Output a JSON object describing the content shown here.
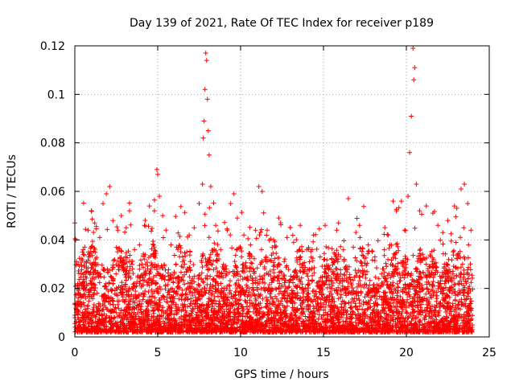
{
  "chart_data": {
    "type": "scatter",
    "title": "Day 139 of 2021, Rate Of TEC Index for receiver p189",
    "xlabel": "GPS time / hours",
    "ylabel": "ROTI / TECUs",
    "xlim": [
      0,
      25
    ],
    "ylim": [
      0,
      0.12
    ],
    "xticks": [
      0,
      5,
      10,
      15,
      20,
      25
    ],
    "xtick_labels": [
      "0",
      "5",
      "10",
      "15",
      "20",
      "25"
    ],
    "yticks": [
      0,
      0.02,
      0.04,
      0.06,
      0.08,
      0.1,
      0.12
    ],
    "ytick_labels": [
      "0",
      "0.02",
      "0.04",
      "0.06",
      "0.08",
      "0.1",
      "0.12"
    ],
    "grid": true,
    "marker": "+",
    "color": "#ff0000",
    "series": [
      {
        "points": [
          [
            0.0,
            0.047
          ],
          [
            0.05,
            0.04
          ],
          [
            0.2,
            0.03
          ],
          [
            0.3,
            0.022
          ],
          [
            0.5,
            0.036
          ],
          [
            0.8,
            0.044
          ],
          [
            1.0,
            0.052
          ],
          [
            1.2,
            0.047
          ],
          [
            1.5,
            0.041
          ],
          [
            1.7,
            0.055
          ],
          [
            1.9,
            0.059
          ],
          [
            2.1,
            0.062
          ],
          [
            2.3,
            0.048
          ],
          [
            2.6,
            0.044
          ],
          [
            2.8,
            0.05
          ],
          [
            3.1,
            0.045
          ],
          [
            3.3,
            0.052
          ],
          [
            3.6,
            0.036
          ],
          [
            3.9,
            0.038
          ],
          [
            4.2,
            0.046
          ],
          [
            4.5,
            0.054
          ],
          [
            4.8,
            0.052
          ],
          [
            4.95,
            0.069
          ],
          [
            5.0,
            0.067
          ],
          [
            5.1,
            0.058
          ],
          [
            5.3,
            0.05
          ],
          [
            5.5,
            0.044
          ],
          [
            5.8,
            0.038
          ],
          [
            6.1,
            0.03
          ],
          [
            6.5,
            0.033
          ],
          [
            6.9,
            0.042
          ],
          [
            7.2,
            0.045
          ],
          [
            7.5,
            0.055
          ],
          [
            7.7,
            0.063
          ],
          [
            7.75,
            0.082
          ],
          [
            7.8,
            0.089
          ],
          [
            7.85,
            0.102
          ],
          [
            7.9,
            0.117
          ],
          [
            7.95,
            0.114
          ],
          [
            8.0,
            0.098
          ],
          [
            8.05,
            0.085
          ],
          [
            8.1,
            0.075
          ],
          [
            8.2,
            0.062
          ],
          [
            8.5,
            0.046
          ],
          [
            8.8,
            0.036
          ],
          [
            9.2,
            0.044
          ],
          [
            9.4,
            0.055
          ],
          [
            9.6,
            0.059
          ],
          [
            9.8,
            0.049
          ],
          [
            10.2,
            0.042
          ],
          [
            10.6,
            0.038
          ],
          [
            10.9,
            0.044
          ],
          [
            11.1,
            0.062
          ],
          [
            11.3,
            0.06
          ],
          [
            11.6,
            0.044
          ],
          [
            12.0,
            0.04
          ],
          [
            12.3,
            0.049
          ],
          [
            12.8,
            0.041
          ],
          [
            13.2,
            0.039
          ],
          [
            13.6,
            0.046
          ],
          [
            14.0,
            0.036
          ],
          [
            14.4,
            0.042
          ],
          [
            14.8,
            0.033
          ],
          [
            15.1,
            0.046
          ],
          [
            15.5,
            0.032
          ],
          [
            15.8,
            0.044
          ],
          [
            16.2,
            0.036
          ],
          [
            16.5,
            0.057
          ],
          [
            16.8,
            0.037
          ],
          [
            17.2,
            0.041
          ],
          [
            17.7,
            0.038
          ],
          [
            18.1,
            0.033
          ],
          [
            18.5,
            0.026
          ],
          [
            18.9,
            0.042
          ],
          [
            19.2,
            0.056
          ],
          [
            19.4,
            0.052
          ],
          [
            19.7,
            0.056
          ],
          [
            19.9,
            0.044
          ],
          [
            20.1,
            0.058
          ],
          [
            20.2,
            0.076
          ],
          [
            20.3,
            0.091
          ],
          [
            20.4,
            0.119
          ],
          [
            20.45,
            0.106
          ],
          [
            20.5,
            0.111
          ],
          [
            20.6,
            0.063
          ],
          [
            20.8,
            0.052
          ],
          [
            21.2,
            0.054
          ],
          [
            21.6,
            0.051
          ],
          [
            21.9,
            0.046
          ],
          [
            22.2,
            0.043
          ],
          [
            22.5,
            0.048
          ],
          [
            22.9,
            0.054
          ],
          [
            23.3,
            0.061
          ],
          [
            23.5,
            0.063
          ],
          [
            23.7,
            0.055
          ],
          [
            23.9,
            0.044
          ]
        ]
      }
    ]
  }
}
